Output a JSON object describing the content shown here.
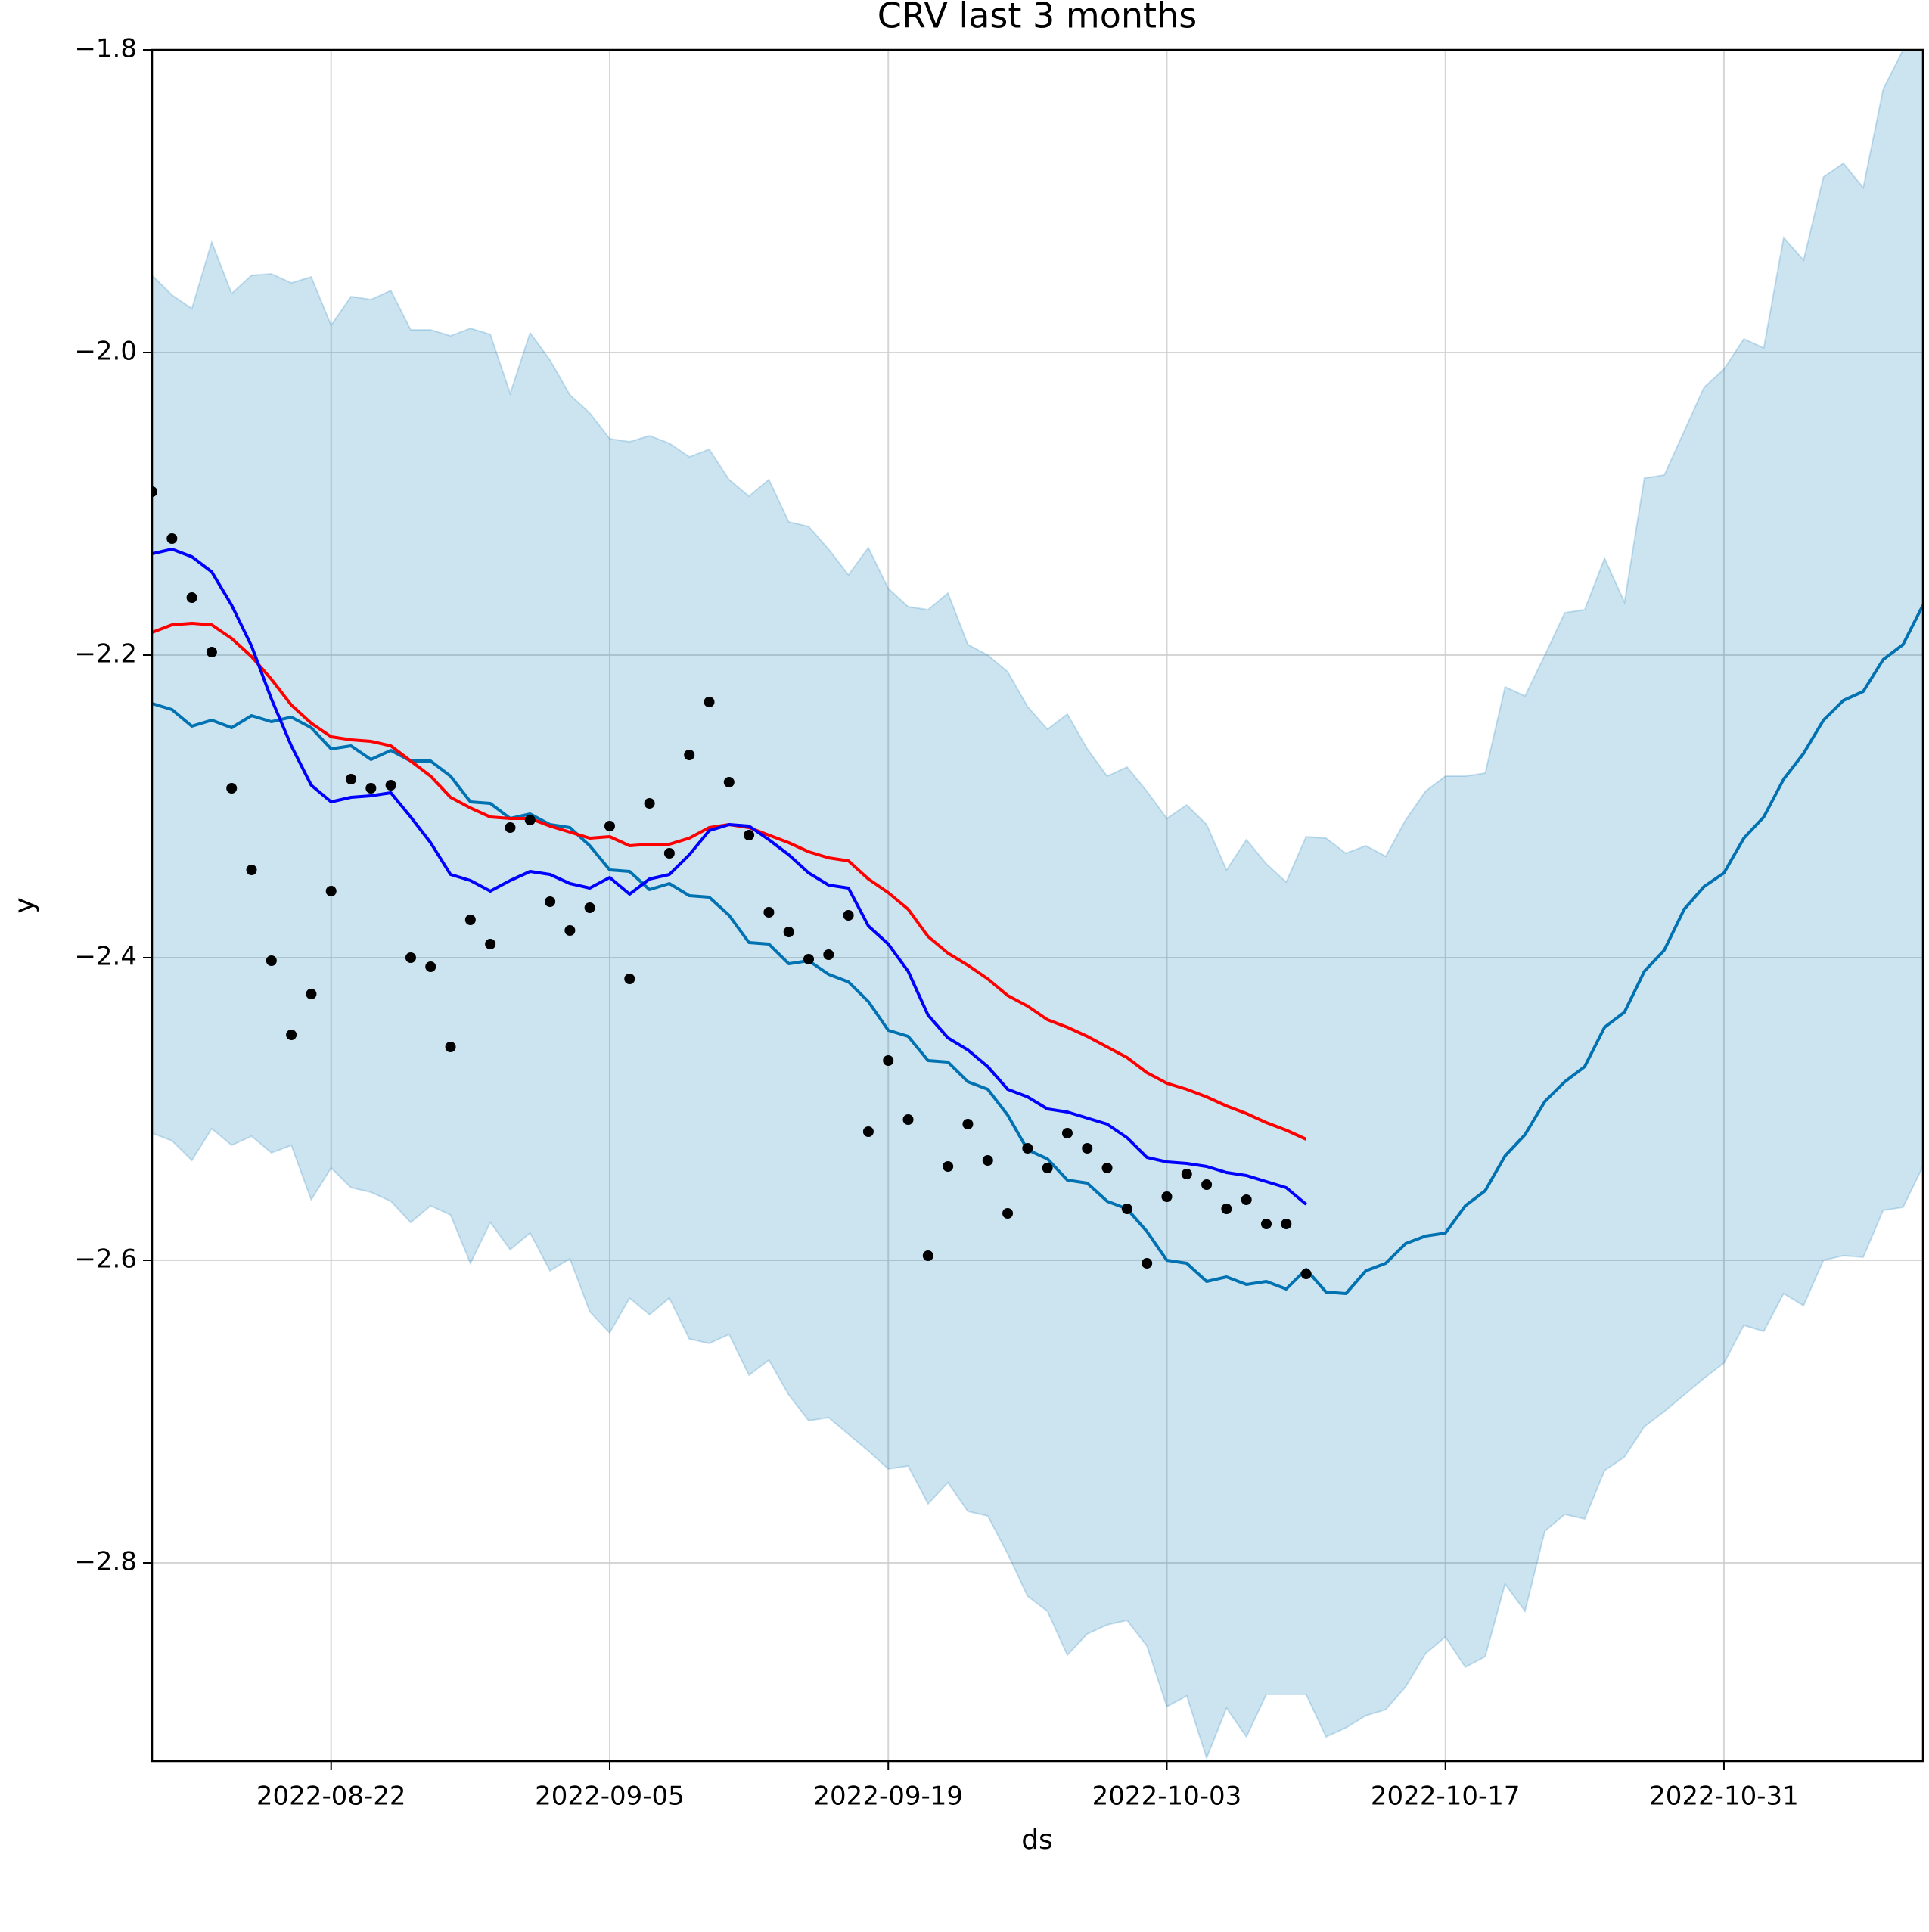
{
  "chart_data": {
    "type": "line",
    "title": "CRV last 3 months",
    "xlabel": "ds",
    "ylabel": "y",
    "grid": true,
    "xlim": [
      "2022-08-13",
      "2022-11-10"
    ],
    "xticks": [
      "2022-08-22",
      "2022-09-05",
      "2022-09-19",
      "2022-10-03",
      "2022-10-17",
      "2022-10-31"
    ],
    "ylim": [
      -2.931,
      -1.8
    ],
    "yticks": [
      {
        "value": -2.8,
        "label": "−2.8"
      },
      {
        "value": -2.6,
        "label": "−2.6"
      },
      {
        "value": -2.4,
        "label": "−2.4"
      },
      {
        "value": -2.2,
        "label": "−2.2"
      },
      {
        "value": -2.0,
        "label": "−2.0"
      },
      {
        "value": -1.8,
        "label": "−1.8"
      }
    ],
    "x": [
      "2022-08-13",
      "2022-08-14",
      "2022-08-15",
      "2022-08-16",
      "2022-08-17",
      "2022-08-18",
      "2022-08-19",
      "2022-08-20",
      "2022-08-21",
      "2022-08-22",
      "2022-08-23",
      "2022-08-24",
      "2022-08-25",
      "2022-08-26",
      "2022-08-27",
      "2022-08-28",
      "2022-08-29",
      "2022-08-30",
      "2022-08-31",
      "2022-09-01",
      "2022-09-02",
      "2022-09-03",
      "2022-09-04",
      "2022-09-05",
      "2022-09-06",
      "2022-09-07",
      "2022-09-08",
      "2022-09-09",
      "2022-09-10",
      "2022-09-11",
      "2022-09-12",
      "2022-09-13",
      "2022-09-14",
      "2022-09-15",
      "2022-09-16",
      "2022-09-17",
      "2022-09-18",
      "2022-09-19",
      "2022-09-20",
      "2022-09-21",
      "2022-09-22",
      "2022-09-23",
      "2022-09-24",
      "2022-09-25",
      "2022-09-26",
      "2022-09-27",
      "2022-09-28",
      "2022-09-29",
      "2022-09-30",
      "2022-10-01",
      "2022-10-02",
      "2022-10-03",
      "2022-10-04",
      "2022-10-05",
      "2022-10-06",
      "2022-10-07",
      "2022-10-08",
      "2022-10-09",
      "2022-10-10",
      "2022-10-11",
      "2022-10-12",
      "2022-10-13",
      "2022-10-14",
      "2022-10-15",
      "2022-10-16",
      "2022-10-17",
      "2022-10-18",
      "2022-10-19",
      "2022-10-20",
      "2022-10-21",
      "2022-10-22",
      "2022-10-23",
      "2022-10-24",
      "2022-10-25",
      "2022-10-26",
      "2022-10-27",
      "2022-10-28",
      "2022-10-29",
      "2022-10-30",
      "2022-10-31",
      "2022-11-01",
      "2022-11-02",
      "2022-11-03",
      "2022-11-04",
      "2022-11-05",
      "2022-11-06",
      "2022-11-07",
      "2022-11-08",
      "2022-11-09",
      "2022-11-10"
    ],
    "band": {
      "color": "#0072B2",
      "upper": [
        -1.949,
        -1.962,
        -1.971,
        -1.927,
        -1.961,
        -1.949,
        -1.948,
        -1.954,
        -1.95,
        -1.982,
        -1.963,
        -1.965,
        -1.959,
        -1.985,
        -1.985,
        -1.989,
        -1.984,
        -1.988,
        -2.027,
        -1.987,
        -2.005,
        -2.028,
        -2.04,
        -2.057,
        -2.059,
        -2.055,
        -2.06,
        -2.069,
        -2.064,
        -2.084,
        -2.095,
        -2.084,
        -2.112,
        -2.115,
        -2.13,
        -2.147,
        -2.129,
        -2.156,
        -2.168,
        -2.17,
        -2.159,
        -2.193,
        -2.2,
        -2.211,
        -2.234,
        -2.249,
        -2.239,
        -2.262,
        -2.28,
        -2.274,
        -2.29,
        -2.308,
        -2.299,
        -2.312,
        -2.342,
        -2.322,
        -2.338,
        -2.35,
        -2.32,
        -2.321,
        -2.331,
        -2.326,
        -2.333,
        -2.309,
        -2.29,
        -2.28,
        -2.28,
        -2.278,
        -2.221,
        -2.227,
        -2.2,
        -2.172,
        -2.17,
        -2.136,
        -2.165,
        -2.083,
        -2.081,
        -2.052,
        -2.023,
        -2.011,
        -1.991,
        -1.997,
        -1.924,
        -1.939,
        -1.884,
        -1.875,
        -1.891,
        -1.826,
        -1.8,
        -1.792
      ],
      "lower": [
        -2.516,
        -2.521,
        -2.534,
        -2.513,
        -2.524,
        -2.518,
        -2.529,
        -2.524,
        -2.56,
        -2.539,
        -2.552,
        -2.555,
        -2.561,
        -2.575,
        -2.564,
        -2.57,
        -2.602,
        -2.575,
        -2.593,
        -2.582,
        -2.607,
        -2.599,
        -2.634,
        -2.648,
        -2.625,
        -2.636,
        -2.625,
        -2.652,
        -2.655,
        -2.649,
        -2.676,
        -2.666,
        -2.689,
        -2.706,
        -2.704,
        -2.715,
        -2.726,
        -2.738,
        -2.736,
        -2.761,
        -2.747,
        -2.766,
        -2.769,
        -2.794,
        -2.822,
        -2.832,
        -2.861,
        -2.847,
        -2.841,
        -2.838,
        -2.855,
        -2.895,
        -2.888,
        -2.929,
        -2.896,
        -2.915,
        -2.887,
        -2.887,
        -2.887,
        -2.915,
        -2.909,
        -2.901,
        -2.897,
        -2.882,
        -2.86,
        -2.849,
        -2.869,
        -2.862,
        -2.814,
        -2.832,
        -2.779,
        -2.768,
        -2.771,
        -2.739,
        -2.73,
        -2.71,
        -2.7,
        -2.689,
        -2.678,
        -2.668,
        -2.643,
        -2.647,
        -2.622,
        -2.63,
        -2.6,
        -2.597,
        -2.598,
        -2.567,
        -2.565,
        -2.538
      ]
    },
    "series": [
      {
        "type": "line",
        "color": "#0072B2",
        "values": [
          -2.232,
          -2.236,
          -2.247,
          -2.243,
          -2.248,
          -2.24,
          -2.244,
          -2.241,
          -2.248,
          -2.262,
          -2.26,
          -2.269,
          -2.263,
          -2.27,
          -2.27,
          -2.28,
          -2.297,
          -2.298,
          -2.308,
          -2.305,
          -2.312,
          -2.314,
          -2.326,
          -2.342,
          -2.343,
          -2.355,
          -2.351,
          -2.359,
          -2.36,
          -2.372,
          -2.39,
          -2.391,
          -2.404,
          -2.402,
          -2.411,
          -2.416,
          -2.429,
          -2.448,
          -2.452,
          -2.468,
          -2.469,
          -2.482,
          -2.487,
          -2.504,
          -2.527,
          -2.533,
          -2.547,
          -2.549,
          -2.561,
          -2.566,
          -2.581,
          -2.6,
          -2.602,
          -2.614,
          -2.611,
          -2.616,
          -2.614,
          -2.619,
          -2.606,
          -2.621,
          -2.622,
          -2.607,
          -2.602,
          -2.589,
          -2.584,
          -2.582,
          -2.564,
          -2.554,
          -2.531,
          -2.517,
          -2.495,
          -2.482,
          -2.472,
          -2.446,
          -2.436,
          -2.409,
          -2.395,
          -2.368,
          -2.353,
          -2.344,
          -2.321,
          -2.307,
          -2.282,
          -2.265,
          -2.243,
          -2.23,
          -2.224,
          -2.203,
          -2.193,
          -2.167
        ]
      },
      {
        "type": "line",
        "color": "#ff0000",
        "values": [
          -2.185,
          -2.18,
          -2.179,
          -2.18,
          -2.189,
          -2.201,
          -2.216,
          -2.233,
          -2.245,
          -2.254,
          -2.256,
          -2.257,
          -2.26,
          -2.27,
          -2.28,
          -2.294,
          -2.301,
          -2.307,
          -2.308,
          -2.308,
          -2.313,
          -2.317,
          -2.321,
          -2.32,
          -2.326,
          -2.325,
          -2.325,
          -2.321,
          -2.314,
          -2.312,
          -2.314,
          -2.319,
          -2.324,
          -2.33,
          -2.334,
          -2.336,
          -2.348,
          -2.357,
          -2.368,
          -2.386,
          -2.397,
          -2.405,
          -2.414,
          -2.425,
          -2.432,
          -2.441,
          -2.446,
          -2.452,
          -2.459,
          -2.466,
          -2.476,
          -2.483,
          -2.487,
          -2.492,
          -2.498,
          -2.503,
          -2.509,
          -2.514,
          -2.52,
          null,
          null,
          null,
          null,
          null,
          null,
          null,
          null,
          null,
          null,
          null,
          null,
          null,
          null,
          null,
          null,
          null,
          null,
          null,
          null,
          null,
          null,
          null,
          null,
          null,
          null,
          null,
          null,
          null,
          null,
          null
        ]
      },
      {
        "type": "line",
        "color": "#0000ff",
        "values": [
          -2.133,
          -2.13,
          -2.135,
          -2.145,
          -2.167,
          -2.194,
          -2.229,
          -2.26,
          -2.286,
          -2.297,
          -2.294,
          -2.293,
          -2.291,
          -2.307,
          -2.324,
          -2.345,
          -2.349,
          -2.356,
          -2.349,
          -2.343,
          -2.345,
          -2.351,
          -2.354,
          -2.347,
          -2.358,
          -2.348,
          -2.345,
          -2.332,
          -2.316,
          -2.312,
          -2.313,
          -2.322,
          -2.332,
          -2.344,
          -2.352,
          -2.354,
          -2.379,
          -2.391,
          -2.409,
          -2.438,
          -2.453,
          -2.461,
          -2.472,
          -2.487,
          -2.492,
          -2.5,
          -2.502,
          -2.506,
          -2.51,
          -2.519,
          -2.532,
          -2.535,
          -2.536,
          -2.538,
          -2.542,
          -2.544,
          -2.548,
          -2.552,
          -2.563,
          null,
          null,
          null,
          null,
          null,
          null,
          null,
          null,
          null,
          null,
          null,
          null,
          null,
          null,
          null,
          null,
          null,
          null,
          null,
          null,
          null,
          null,
          null,
          null,
          null,
          null,
          null,
          null,
          null,
          null,
          null
        ]
      },
      {
        "type": "scatter",
        "color": "#000000",
        "values": [
          -2.092,
          -2.123,
          -2.162,
          -2.198,
          -2.288,
          -2.342,
          -2.402,
          -2.451,
          -2.424,
          -2.356,
          -2.282,
          -2.288,
          -2.286,
          -2.4,
          -2.406,
          -2.459,
          -2.375,
          -2.391,
          -2.314,
          -2.309,
          -2.363,
          -2.382,
          -2.367,
          -2.313,
          -2.414,
          -2.298,
          -2.331,
          -2.266,
          -2.231,
          -2.284,
          -2.319,
          -2.37,
          -2.383,
          -2.401,
          -2.398,
          -2.372,
          -2.515,
          -2.468,
          -2.507,
          -2.597,
          -2.538,
          -2.51,
          -2.534,
          -2.569,
          -2.526,
          -2.539,
          -2.516,
          -2.526,
          -2.539,
          -2.566,
          -2.602,
          -2.558,
          -2.543,
          -2.55,
          -2.566,
          -2.56,
          -2.576,
          -2.576,
          -2.609,
          null,
          null,
          null,
          null,
          null,
          null,
          null,
          null,
          null,
          null,
          null,
          null,
          null,
          null,
          null,
          null,
          null,
          null,
          null,
          null,
          null,
          null,
          null,
          null,
          null,
          null,
          null,
          null,
          null,
          null,
          null
        ]
      }
    ]
  }
}
